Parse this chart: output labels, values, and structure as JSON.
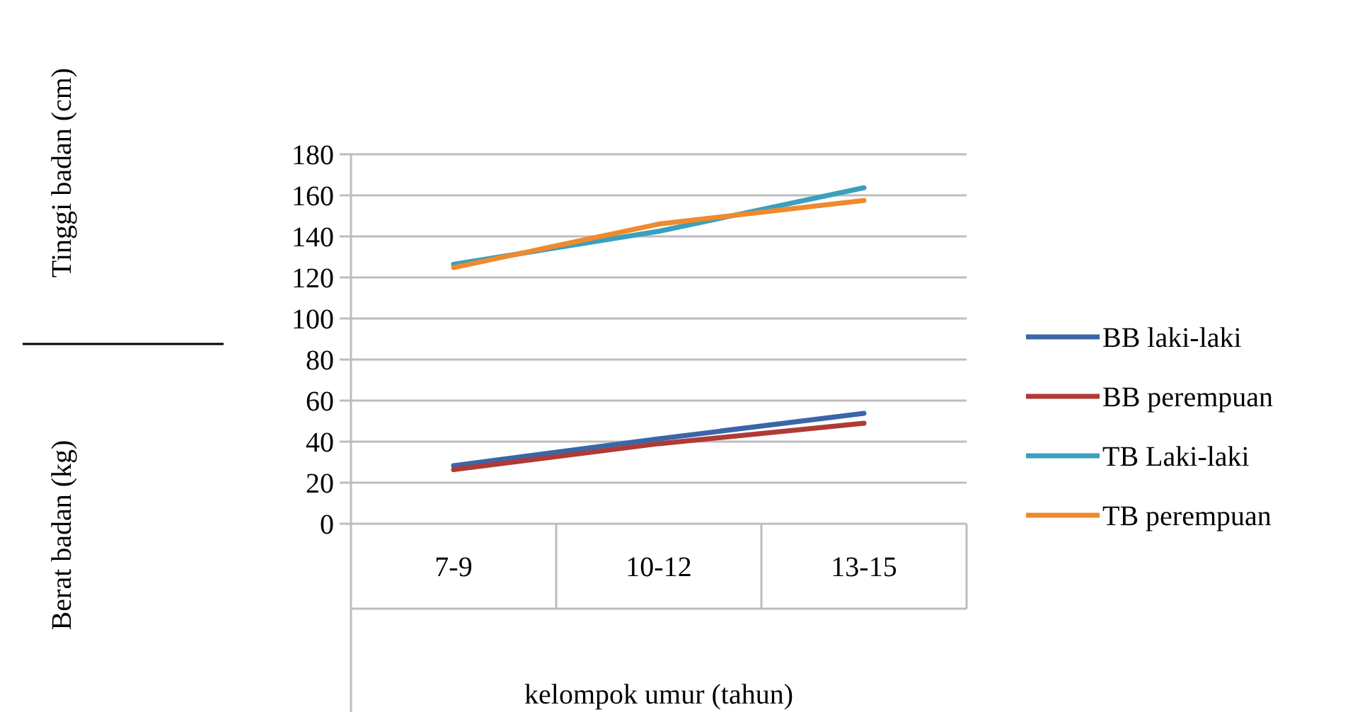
{
  "chart_data": {
    "type": "line",
    "categories": [
      "7-9",
      "10-12",
      "13-15"
    ],
    "xlabel": "kelompok umur (tahun)",
    "annotations": [
      "Tinggi badan (cm)",
      "Berat badan (kg)"
    ],
    "ylim": [
      0,
      180
    ],
    "yticks": [
      0,
      20,
      40,
      60,
      80,
      100,
      120,
      140,
      160,
      180
    ],
    "grid": "y",
    "legend": "right",
    "marker": "none",
    "line_style": "solid",
    "series": [
      {
        "name": "BB laki-laki",
        "color": "#3a66a8",
        "values": [
          28.3,
          41.4,
          53.8
        ]
      },
      {
        "name": "BB perempuan",
        "color": "#b03a36",
        "values": [
          26.4,
          39,
          49
        ]
      },
      {
        "name": "TB Laki-laki",
        "color": "#3aa0bd",
        "values": [
          126.4,
          142.5,
          163.7
        ]
      },
      {
        "name": "TB perempuan",
        "color": "#ef8a2e",
        "values": [
          124.8,
          146,
          157.5
        ]
      }
    ]
  }
}
